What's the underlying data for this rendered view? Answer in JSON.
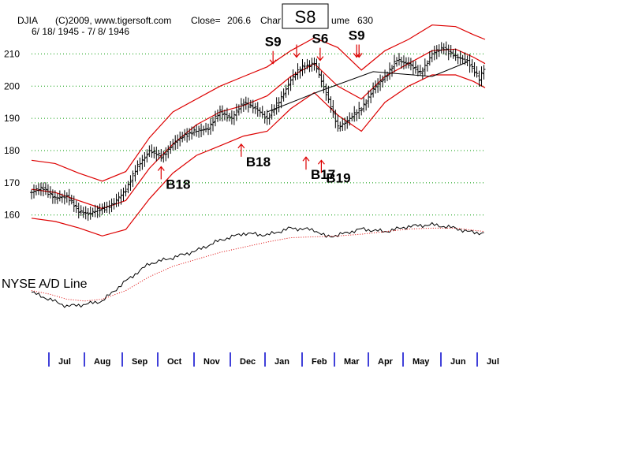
{
  "header": {
    "ticker": "DJIA",
    "source": "(C)2009, www.tigersoft.com",
    "close_label": "Close=",
    "close_value": "206.6",
    "chart_fragment": "Char",
    "volume_fragment": "ume",
    "volume_value": "630",
    "date_range": "6/ 18/ 1945 - 7/ 8/ 1946",
    "boxed_signal": "S8"
  },
  "colors": {
    "price_bars": "#000000",
    "bands": "#dd0000",
    "signal_arrows": "#dd0000",
    "grid": "#009900",
    "ad_line": "#000000",
    "ad_moving_average": "#dd0000",
    "month_ticks": "#0000cc"
  },
  "chart_data": [
    {
      "type": "line",
      "title": "DJIA",
      "subtitle": "6/ 18/ 1945 - 7/ 8/ 1946",
      "chart_style": "daily price bars with red percentage bands and a black trendline",
      "ylim": [
        157,
        215
      ],
      "y_ticks": [
        160,
        170,
        180,
        190,
        200,
        210
      ],
      "grid": "horizontal dotted green at each y tick",
      "x_tick_labels": [
        "Jul",
        "Aug",
        "Sep",
        "Oct",
        "Nov",
        "Dec",
        "Jan",
        "Feb",
        "Mar",
        "Apr",
        "May",
        "Jun",
        "Jul"
      ],
      "close_value": 206.6,
      "series": [
        {
          "role": "price",
          "x": [
            0,
            10,
            20,
            30,
            40,
            50,
            60,
            70,
            80,
            90,
            100,
            110,
            120,
            130,
            140,
            150,
            160,
            170,
            180,
            190,
            200,
            210,
            220,
            230,
            240,
            250,
            260,
            270,
            280,
            290,
            300,
            310,
            320,
            330,
            340,
            350,
            360,
            370,
            380,
            385
          ],
          "values": [
            167,
            168.5,
            165,
            166,
            161,
            160.5,
            162,
            163.5,
            168,
            175,
            180,
            178,
            182,
            185,
            186,
            187,
            192,
            190,
            195,
            193,
            190,
            195,
            202,
            206,
            207,
            198,
            187,
            190,
            193,
            199,
            203,
            208,
            207,
            204,
            210,
            212,
            209,
            208,
            202,
            206.6
          ]
        },
        {
          "role": "upper band",
          "x": [
            0,
            20,
            40,
            60,
            80,
            100,
            120,
            140,
            160,
            180,
            200,
            220,
            240,
            260,
            280,
            300,
            320,
            340,
            360,
            375,
            385
          ],
          "values": [
            177,
            176,
            173,
            170.5,
            173.5,
            184,
            192,
            196,
            200,
            203,
            206,
            211,
            215,
            212,
            205,
            211,
            214.5,
            219,
            218.5,
            216,
            214.5
          ]
        },
        {
          "role": "middle band",
          "x": [
            0,
            20,
            40,
            60,
            80,
            100,
            120,
            140,
            160,
            180,
            200,
            220,
            240,
            260,
            280,
            300,
            320,
            340,
            360,
            375,
            385
          ],
          "values": [
            168,
            167,
            164.5,
            162,
            164.5,
            174.5,
            182,
            188,
            192,
            194,
            197,
            203,
            207,
            200,
            196,
            203,
            207,
            211,
            211.5,
            209,
            207
          ]
        },
        {
          "role": "lower band",
          "x": [
            0,
            20,
            40,
            60,
            80,
            100,
            120,
            140,
            160,
            180,
            200,
            220,
            240,
            260,
            280,
            300,
            320,
            340,
            360,
            375,
            385
          ],
          "values": [
            159,
            158,
            156,
            153.5,
            155.5,
            165,
            173,
            178.5,
            181.5,
            184.5,
            186,
            193,
            198,
            191,
            186,
            195,
            200,
            203.5,
            203.5,
            201.5,
            199.5
          ]
        },
        {
          "role": "trendline",
          "x": [
            200,
            245,
            290,
            340,
            370
          ],
          "values": [
            192,
            198.5,
            204.5,
            203,
            207.5
          ]
        }
      ],
      "annotations": [
        {
          "label": "S9",
          "kind": "sell",
          "x": 205,
          "y": 207
        },
        {
          "label": "",
          "kind": "sell",
          "x": 225,
          "y": 209
        },
        {
          "label": "S6",
          "kind": "sell",
          "x": 245,
          "y": 208
        },
        {
          "label": "S9",
          "kind": "sell",
          "x": 276,
          "y": 209
        },
        {
          "label": "",
          "kind": "sell",
          "x": 278,
          "y": 209
        },
        {
          "label": "B18",
          "kind": "buy",
          "x": 110,
          "y": 175
        },
        {
          "label": "B18",
          "kind": "buy",
          "x": 178,
          "y": 182
        },
        {
          "label": "B17",
          "kind": "buy",
          "x": 233,
          "y": 178
        },
        {
          "label": "B19",
          "kind": "buy",
          "x": 246,
          "y": 177
        }
      ]
    },
    {
      "type": "line",
      "title": "NYSE A/D Line",
      "chart_style": "line with red dotted moving average",
      "ylim": [
        0,
        100
      ],
      "series": [
        {
          "role": "A/D line",
          "x": [
            0,
            15,
            30,
            45,
            60,
            80,
            100,
            120,
            140,
            160,
            180,
            200,
            220,
            240,
            250,
            260,
            280,
            300,
            320,
            340,
            350,
            360,
            370,
            385
          ],
          "values": [
            22,
            14,
            6,
            8,
            12,
            35,
            55,
            62,
            70,
            82,
            90,
            88,
            96,
            94,
            86,
            88,
            95,
            92,
            98,
            100,
            98,
            96,
            92,
            90
          ]
        },
        {
          "role": "moving average",
          "x": [
            0,
            15,
            30,
            45,
            60,
            80,
            100,
            120,
            140,
            160,
            180,
            200,
            220,
            240,
            260,
            280,
            300,
            320,
            340,
            360,
            385
          ],
          "values": [
            24,
            20,
            14,
            12,
            14,
            24,
            40,
            52,
            60,
            68,
            74,
            80,
            85,
            86,
            87,
            89,
            92,
            95,
            96,
            96,
            92
          ]
        }
      ]
    }
  ]
}
